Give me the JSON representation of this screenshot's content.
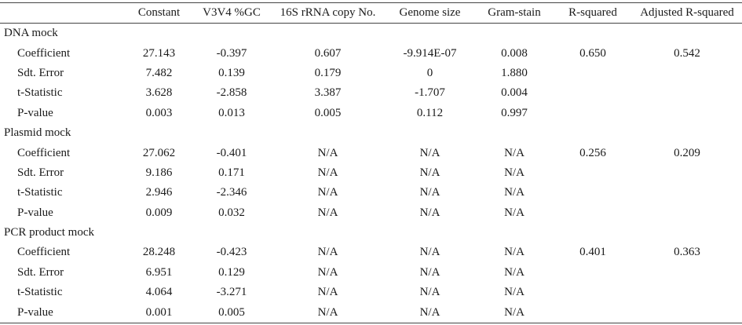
{
  "headers": [
    "",
    "Constant",
    "V3V4 %GC",
    "16S rRNA copy No.",
    "Genome size",
    "Gram-stain",
    "R-squared",
    "Adjusted R-squared"
  ],
  "groups": [
    {
      "name": "DNA mock",
      "rows": [
        {
          "label": "Coefficient",
          "values": [
            "27.143",
            "-0.397",
            "0.607",
            "-9.914E-07",
            "0.008",
            "0.650",
            "0.542"
          ]
        },
        {
          "label": "Sdt. Error",
          "values": [
            "7.482",
            "0.139",
            "0.179",
            "0",
            "1.880",
            "",
            ""
          ]
        },
        {
          "label": "t-Statistic",
          "values": [
            "3.628",
            "-2.858",
            "3.387",
            "-1.707",
            "0.004",
            "",
            ""
          ]
        },
        {
          "label": "P-value",
          "values": [
            "0.003",
            "0.013",
            "0.005",
            "0.112",
            "0.997",
            "",
            ""
          ]
        }
      ]
    },
    {
      "name": "Plasmid mock",
      "rows": [
        {
          "label": "Coefficient",
          "values": [
            "27.062",
            "-0.401",
            "N/A",
            "N/A",
            "N/A",
            "0.256",
            "0.209"
          ]
        },
        {
          "label": "Sdt. Error",
          "values": [
            "9.186",
            "0.171",
            "N/A",
            "N/A",
            "N/A",
            "",
            ""
          ]
        },
        {
          "label": "t-Statistic",
          "values": [
            "2.946",
            "-2.346",
            "N/A",
            "N/A",
            "N/A",
            "",
            ""
          ]
        },
        {
          "label": "P-value",
          "values": [
            "0.009",
            "0.032",
            "N/A",
            "N/A",
            "N/A",
            "",
            ""
          ]
        }
      ]
    },
    {
      "name": "PCR product mock",
      "rows": [
        {
          "label": "Coefficient",
          "values": [
            "28.248",
            "-0.423",
            "N/A",
            "N/A",
            "N/A",
            "0.401",
            "0.363"
          ]
        },
        {
          "label": "Sdt. Error",
          "values": [
            "6.951",
            "0.129",
            "N/A",
            "N/A",
            "N/A",
            "",
            ""
          ]
        },
        {
          "label": "t-Statistic",
          "values": [
            "4.064",
            "-3.271",
            "N/A",
            "N/A",
            "N/A",
            "",
            ""
          ]
        },
        {
          "label": "P-value",
          "values": [
            "0.001",
            "0.005",
            "N/A",
            "N/A",
            "N/A",
            "",
            ""
          ]
        }
      ]
    }
  ]
}
